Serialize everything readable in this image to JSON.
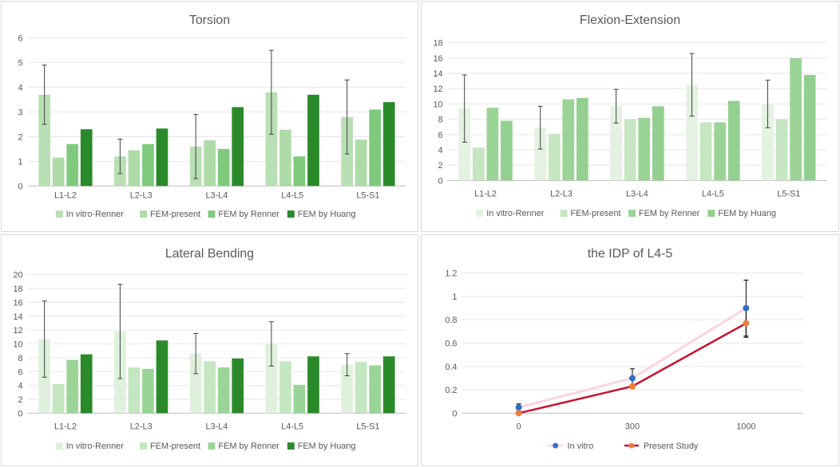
{
  "chart_data": [
    {
      "type": "bar",
      "title": "Torsion",
      "categories": [
        "L1-L2",
        "L2-L3",
        "L3-L4",
        "L4-L5",
        "L5-S1"
      ],
      "ylim": [
        0,
        6
      ],
      "yticks": [
        0,
        1,
        2,
        3,
        4,
        5,
        6
      ],
      "series": [
        {
          "name": "In vitro-Renner",
          "color": "#b9e0b4",
          "values": [
            3.7,
            1.2,
            1.6,
            3.8,
            2.8
          ],
          "error": [
            1.2,
            0.7,
            1.3,
            1.7,
            1.5
          ]
        },
        {
          "name": "FEM-present",
          "color": "#aedba8",
          "values": [
            1.15,
            1.45,
            1.85,
            2.28,
            1.88
          ]
        },
        {
          "name": "FEM by Renner",
          "color": "#7fca7d",
          "values": [
            1.7,
            1.7,
            1.5,
            1.2,
            3.1
          ]
        },
        {
          "name": "FEM by Huang",
          "color": "#2a8a2a",
          "values": [
            2.3,
            2.33,
            3.2,
            3.7,
            3.4
          ]
        }
      ],
      "legend_position": "bottom"
    },
    {
      "type": "bar",
      "title": "Flexion-Extension",
      "categories": [
        "L1-L2",
        "L2-L3",
        "L3-L4",
        "L4-L5",
        "L5-S1"
      ],
      "ylim": [
        0,
        18
      ],
      "yticks": [
        0,
        2,
        4,
        6,
        8,
        10,
        12,
        14,
        16,
        18
      ],
      "series": [
        {
          "name": "In vitro-Renner",
          "color": "#e4f3e1",
          "values": [
            9.4,
            6.9,
            9.7,
            12.5,
            10.0
          ],
          "error": [
            4.4,
            2.8,
            2.2,
            4.1,
            3.1
          ]
        },
        {
          "name": "FEM-present",
          "color": "#c6e6c2",
          "values": [
            4.3,
            6.1,
            8.0,
            7.6,
            8.0
          ]
        },
        {
          "name": "FEM by Renner",
          "color": "#9bd496",
          "values": [
            9.5,
            10.6,
            8.2,
            7.6,
            16.0
          ]
        },
        {
          "name": "FEM by Huang",
          "color": "#93d08f",
          "values": [
            7.8,
            10.8,
            9.7,
            10.4,
            13.8
          ]
        }
      ],
      "legend_position": "bottom"
    },
    {
      "type": "bar",
      "title": "Lateral Bending",
      "categories": [
        "L1-L2",
        "L2-L3",
        "L3-L4",
        "L4-L5",
        "L5-S1"
      ],
      "ylim": [
        0,
        20
      ],
      "yticks": [
        0,
        2,
        4,
        6,
        8,
        10,
        12,
        14,
        16,
        18,
        20
      ],
      "series": [
        {
          "name": "In vitro-Renner",
          "color": "#dff1dc",
          "values": [
            10.7,
            11.8,
            8.6,
            10.0,
            7.0
          ],
          "error": [
            5.5,
            6.8,
            2.9,
            3.2,
            1.6
          ]
        },
        {
          "name": "FEM-present",
          "color": "#c4e6c0",
          "values": [
            4.2,
            6.6,
            7.5,
            7.5,
            7.4
          ]
        },
        {
          "name": "FEM by Renner",
          "color": "#9ad597",
          "values": [
            7.7,
            6.4,
            6.6,
            4.1,
            6.9
          ]
        },
        {
          "name": "FEM by Huang",
          "color": "#2a8a2a",
          "values": [
            8.5,
            10.5,
            7.9,
            8.2,
            8.2
          ]
        }
      ],
      "legend_position": "bottom"
    },
    {
      "type": "line",
      "title": "the IDP of L4-5",
      "categories": [
        "0",
        "300",
        "1000"
      ],
      "ylim": [
        0,
        1.2
      ],
      "yticks": [
        0,
        0.2,
        0.4,
        0.6,
        0.8,
        1,
        1.2
      ],
      "series": [
        {
          "name": "In vitro",
          "line_color": "#fbd4e0",
          "marker_color": "#2f6fc6",
          "values": [
            0.05,
            0.3,
            0.9
          ],
          "error": [
            0.03,
            0.08,
            0.24
          ]
        },
        {
          "name": "Present Study",
          "line_color": "#c8102e",
          "marker_color": "#ee7d3b",
          "values": [
            0.0,
            0.23,
            0.77
          ],
          "error": [
            0.0,
            0.0,
            0.12
          ]
        }
      ],
      "legend_position": "bottom"
    }
  ]
}
